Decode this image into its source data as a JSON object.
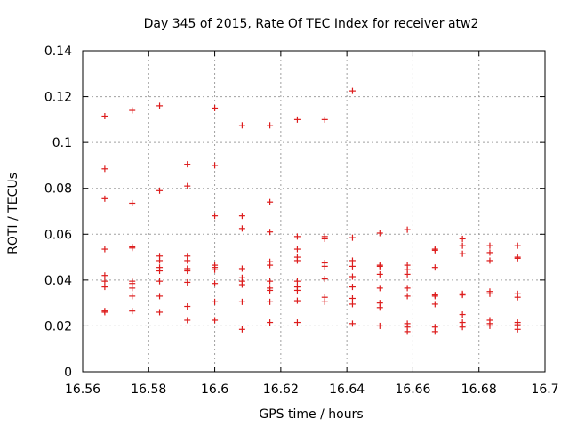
{
  "chart_data": {
    "type": "scatter",
    "title": "Day 345 of 2015, Rate Of TEC Index for receiver atw2",
    "xlabel": "GPS time / hours",
    "ylabel": "ROTI / TECUs",
    "xlim": [
      16.56,
      16.7
    ],
    "ylim": [
      0,
      0.14
    ],
    "xticks": [
      "16.56",
      "16.58",
      "16.6",
      "16.62",
      "16.64",
      "16.66",
      "16.68",
      "16.7"
    ],
    "yticks": [
      "0",
      "0.02",
      "0.04",
      "0.06",
      "0.08",
      "0.1",
      "0.12",
      "0.14"
    ],
    "xtick_values": [
      16.56,
      16.58,
      16.6,
      16.62,
      16.64,
      16.66,
      16.68,
      16.7
    ],
    "ytick_values": [
      0,
      0.02,
      0.04,
      0.06,
      0.08,
      0.1,
      0.12,
      0.14
    ],
    "grid": true,
    "marker": "plus",
    "color": "#dd1c1c",
    "series": [
      {
        "name": "ROTI",
        "points": [
          [
            16.5667,
            0.1115
          ],
          [
            16.5667,
            0.0885
          ],
          [
            16.5667,
            0.0755
          ],
          [
            16.5667,
            0.0535
          ],
          [
            16.5667,
            0.042
          ],
          [
            16.5667,
            0.0395
          ],
          [
            16.5667,
            0.037
          ],
          [
            16.5667,
            0.0265
          ],
          [
            16.5667,
            0.026
          ],
          [
            16.575,
            0.114
          ],
          [
            16.575,
            0.0735
          ],
          [
            16.575,
            0.0545
          ],
          [
            16.575,
            0.054
          ],
          [
            16.575,
            0.0395
          ],
          [
            16.575,
            0.0385
          ],
          [
            16.575,
            0.0365
          ],
          [
            16.575,
            0.033
          ],
          [
            16.575,
            0.0265
          ],
          [
            16.5833,
            0.116
          ],
          [
            16.5833,
            0.079
          ],
          [
            16.5833,
            0.0505
          ],
          [
            16.5833,
            0.0485
          ],
          [
            16.5833,
            0.0455
          ],
          [
            16.5833,
            0.044
          ],
          [
            16.5833,
            0.0395
          ],
          [
            16.5833,
            0.033
          ],
          [
            16.5833,
            0.026
          ],
          [
            16.5917,
            0.0905
          ],
          [
            16.5917,
            0.081
          ],
          [
            16.5917,
            0.0505
          ],
          [
            16.5917,
            0.0485
          ],
          [
            16.5917,
            0.045
          ],
          [
            16.5917,
            0.044
          ],
          [
            16.5917,
            0.039
          ],
          [
            16.5917,
            0.0285
          ],
          [
            16.5917,
            0.0225
          ],
          [
            16.6,
            0.115
          ],
          [
            16.6,
            0.09
          ],
          [
            16.6,
            0.068
          ],
          [
            16.6,
            0.0465
          ],
          [
            16.6,
            0.0455
          ],
          [
            16.6,
            0.0445
          ],
          [
            16.6,
            0.0385
          ],
          [
            16.6,
            0.0305
          ],
          [
            16.6,
            0.0225
          ],
          [
            16.6083,
            0.1075
          ],
          [
            16.6083,
            0.068
          ],
          [
            16.6083,
            0.0625
          ],
          [
            16.6083,
            0.045
          ],
          [
            16.6083,
            0.041
          ],
          [
            16.6083,
            0.0395
          ],
          [
            16.6083,
            0.038
          ],
          [
            16.6083,
            0.0305
          ],
          [
            16.6083,
            0.0185
          ],
          [
            16.6167,
            0.1075
          ],
          [
            16.6167,
            0.074
          ],
          [
            16.6167,
            0.061
          ],
          [
            16.6167,
            0.048
          ],
          [
            16.6167,
            0.0465
          ],
          [
            16.6167,
            0.0395
          ],
          [
            16.6167,
            0.0365
          ],
          [
            16.6167,
            0.0355
          ],
          [
            16.6167,
            0.0305
          ],
          [
            16.6167,
            0.0215
          ],
          [
            16.625,
            0.11
          ],
          [
            16.625,
            0.059
          ],
          [
            16.625,
            0.0535
          ],
          [
            16.625,
            0.05
          ],
          [
            16.625,
            0.0485
          ],
          [
            16.625,
            0.0395
          ],
          [
            16.625,
            0.037
          ],
          [
            16.625,
            0.0355
          ],
          [
            16.625,
            0.031
          ],
          [
            16.625,
            0.0215
          ],
          [
            16.6333,
            0.11
          ],
          [
            16.6333,
            0.059
          ],
          [
            16.6333,
            0.058
          ],
          [
            16.6333,
            0.0475
          ],
          [
            16.6333,
            0.046
          ],
          [
            16.6333,
            0.0405
          ],
          [
            16.6333,
            0.0325
          ],
          [
            16.6333,
            0.0305
          ],
          [
            16.6417,
            0.1225
          ],
          [
            16.6417,
            0.0585
          ],
          [
            16.6417,
            0.0485
          ],
          [
            16.6417,
            0.046
          ],
          [
            16.6417,
            0.0415
          ],
          [
            16.6417,
            0.037
          ],
          [
            16.6417,
            0.032
          ],
          [
            16.6417,
            0.0295
          ],
          [
            16.6417,
            0.021
          ],
          [
            16.65,
            0.0605
          ],
          [
            16.65,
            0.0465
          ],
          [
            16.65,
            0.046
          ],
          [
            16.65,
            0.0425
          ],
          [
            16.65,
            0.0365
          ],
          [
            16.65,
            0.03
          ],
          [
            16.65,
            0.028
          ],
          [
            16.65,
            0.02
          ],
          [
            16.6583,
            0.062
          ],
          [
            16.6583,
            0.0465
          ],
          [
            16.6583,
            0.0445
          ],
          [
            16.6583,
            0.0425
          ],
          [
            16.6583,
            0.0365
          ],
          [
            16.6583,
            0.033
          ],
          [
            16.6583,
            0.021
          ],
          [
            16.6583,
            0.0195
          ],
          [
            16.6583,
            0.0175
          ],
          [
            16.6667,
            0.0535
          ],
          [
            16.6667,
            0.053
          ],
          [
            16.6667,
            0.0455
          ],
          [
            16.6667,
            0.0335
          ],
          [
            16.6667,
            0.033
          ],
          [
            16.6667,
            0.0295
          ],
          [
            16.6667,
            0.0195
          ],
          [
            16.6667,
            0.0175
          ],
          [
            16.675,
            0.058
          ],
          [
            16.675,
            0.055
          ],
          [
            16.675,
            0.0515
          ],
          [
            16.675,
            0.034
          ],
          [
            16.675,
            0.0335
          ],
          [
            16.675,
            0.025
          ],
          [
            16.675,
            0.0215
          ],
          [
            16.675,
            0.0195
          ],
          [
            16.6833,
            0.055
          ],
          [
            16.6833,
            0.052
          ],
          [
            16.6833,
            0.0485
          ],
          [
            16.6833,
            0.035
          ],
          [
            16.6833,
            0.034
          ],
          [
            16.6833,
            0.0225
          ],
          [
            16.6833,
            0.021
          ],
          [
            16.6833,
            0.02
          ],
          [
            16.6917,
            0.055
          ],
          [
            16.6917,
            0.05
          ],
          [
            16.6917,
            0.0495
          ],
          [
            16.6917,
            0.034
          ],
          [
            16.6917,
            0.0325
          ],
          [
            16.6917,
            0.0215
          ],
          [
            16.6917,
            0.0205
          ],
          [
            16.6917,
            0.0185
          ]
        ]
      }
    ]
  }
}
